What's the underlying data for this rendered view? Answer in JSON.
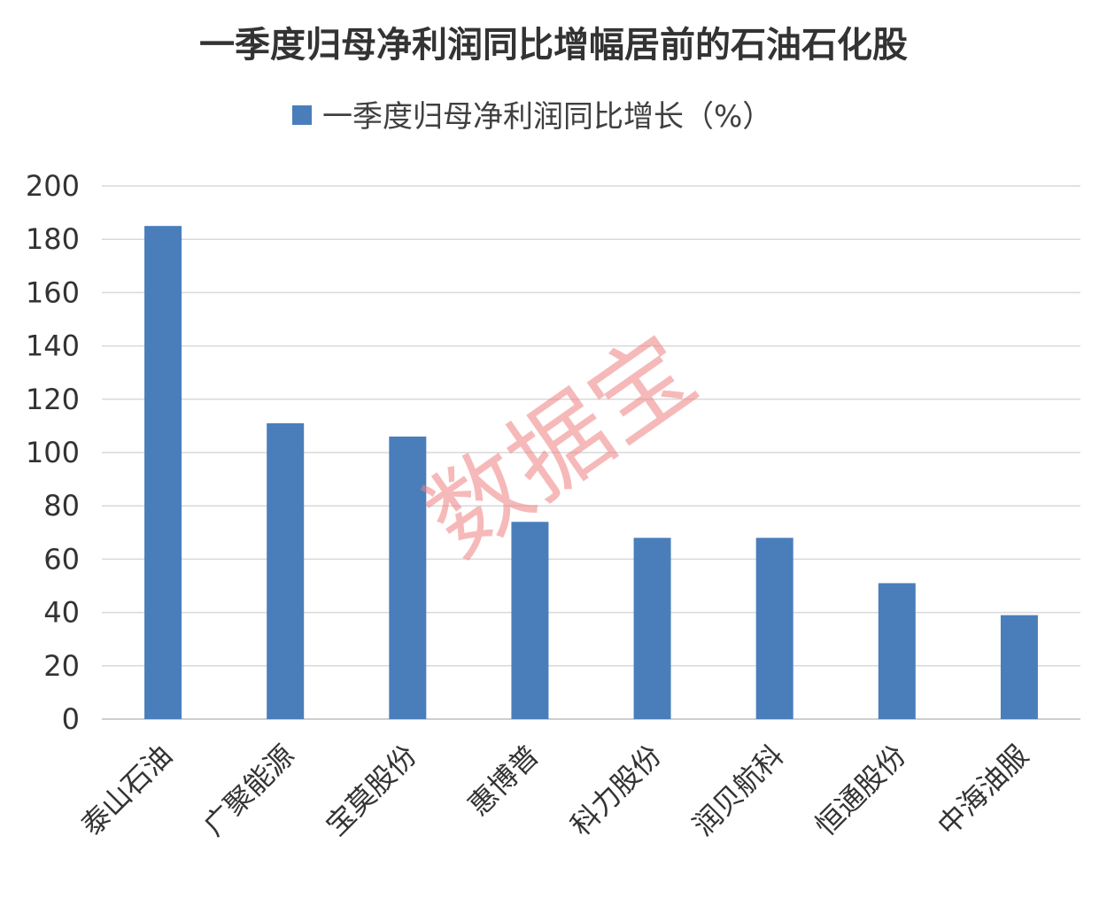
{
  "chart_data": {
    "type": "bar",
    "title": "一季度归母净利润同比增幅居前的石油石化股",
    "legend": "一季度归母净利润同比增长（%）",
    "legend_position": "top",
    "categories": [
      "泰山石油",
      "广聚能源",
      "宝莫股份",
      "惠博普",
      "科力股份",
      "润贝航科",
      "恒通股份",
      "中海油服"
    ],
    "series": [
      {
        "name": "一季度归母净利润同比增长（%）",
        "values": [
          185,
          111,
          106,
          74,
          68,
          68,
          51,
          39
        ]
      }
    ],
    "ylim": [
      0,
      200
    ],
    "yticks": [
      0,
      20,
      40,
      60,
      80,
      100,
      120,
      140,
      160,
      180,
      200
    ],
    "grid": true,
    "colors": {
      "bar": "#4a7ebb",
      "grid": "#d9d9d9"
    },
    "watermark": "数据宝"
  }
}
